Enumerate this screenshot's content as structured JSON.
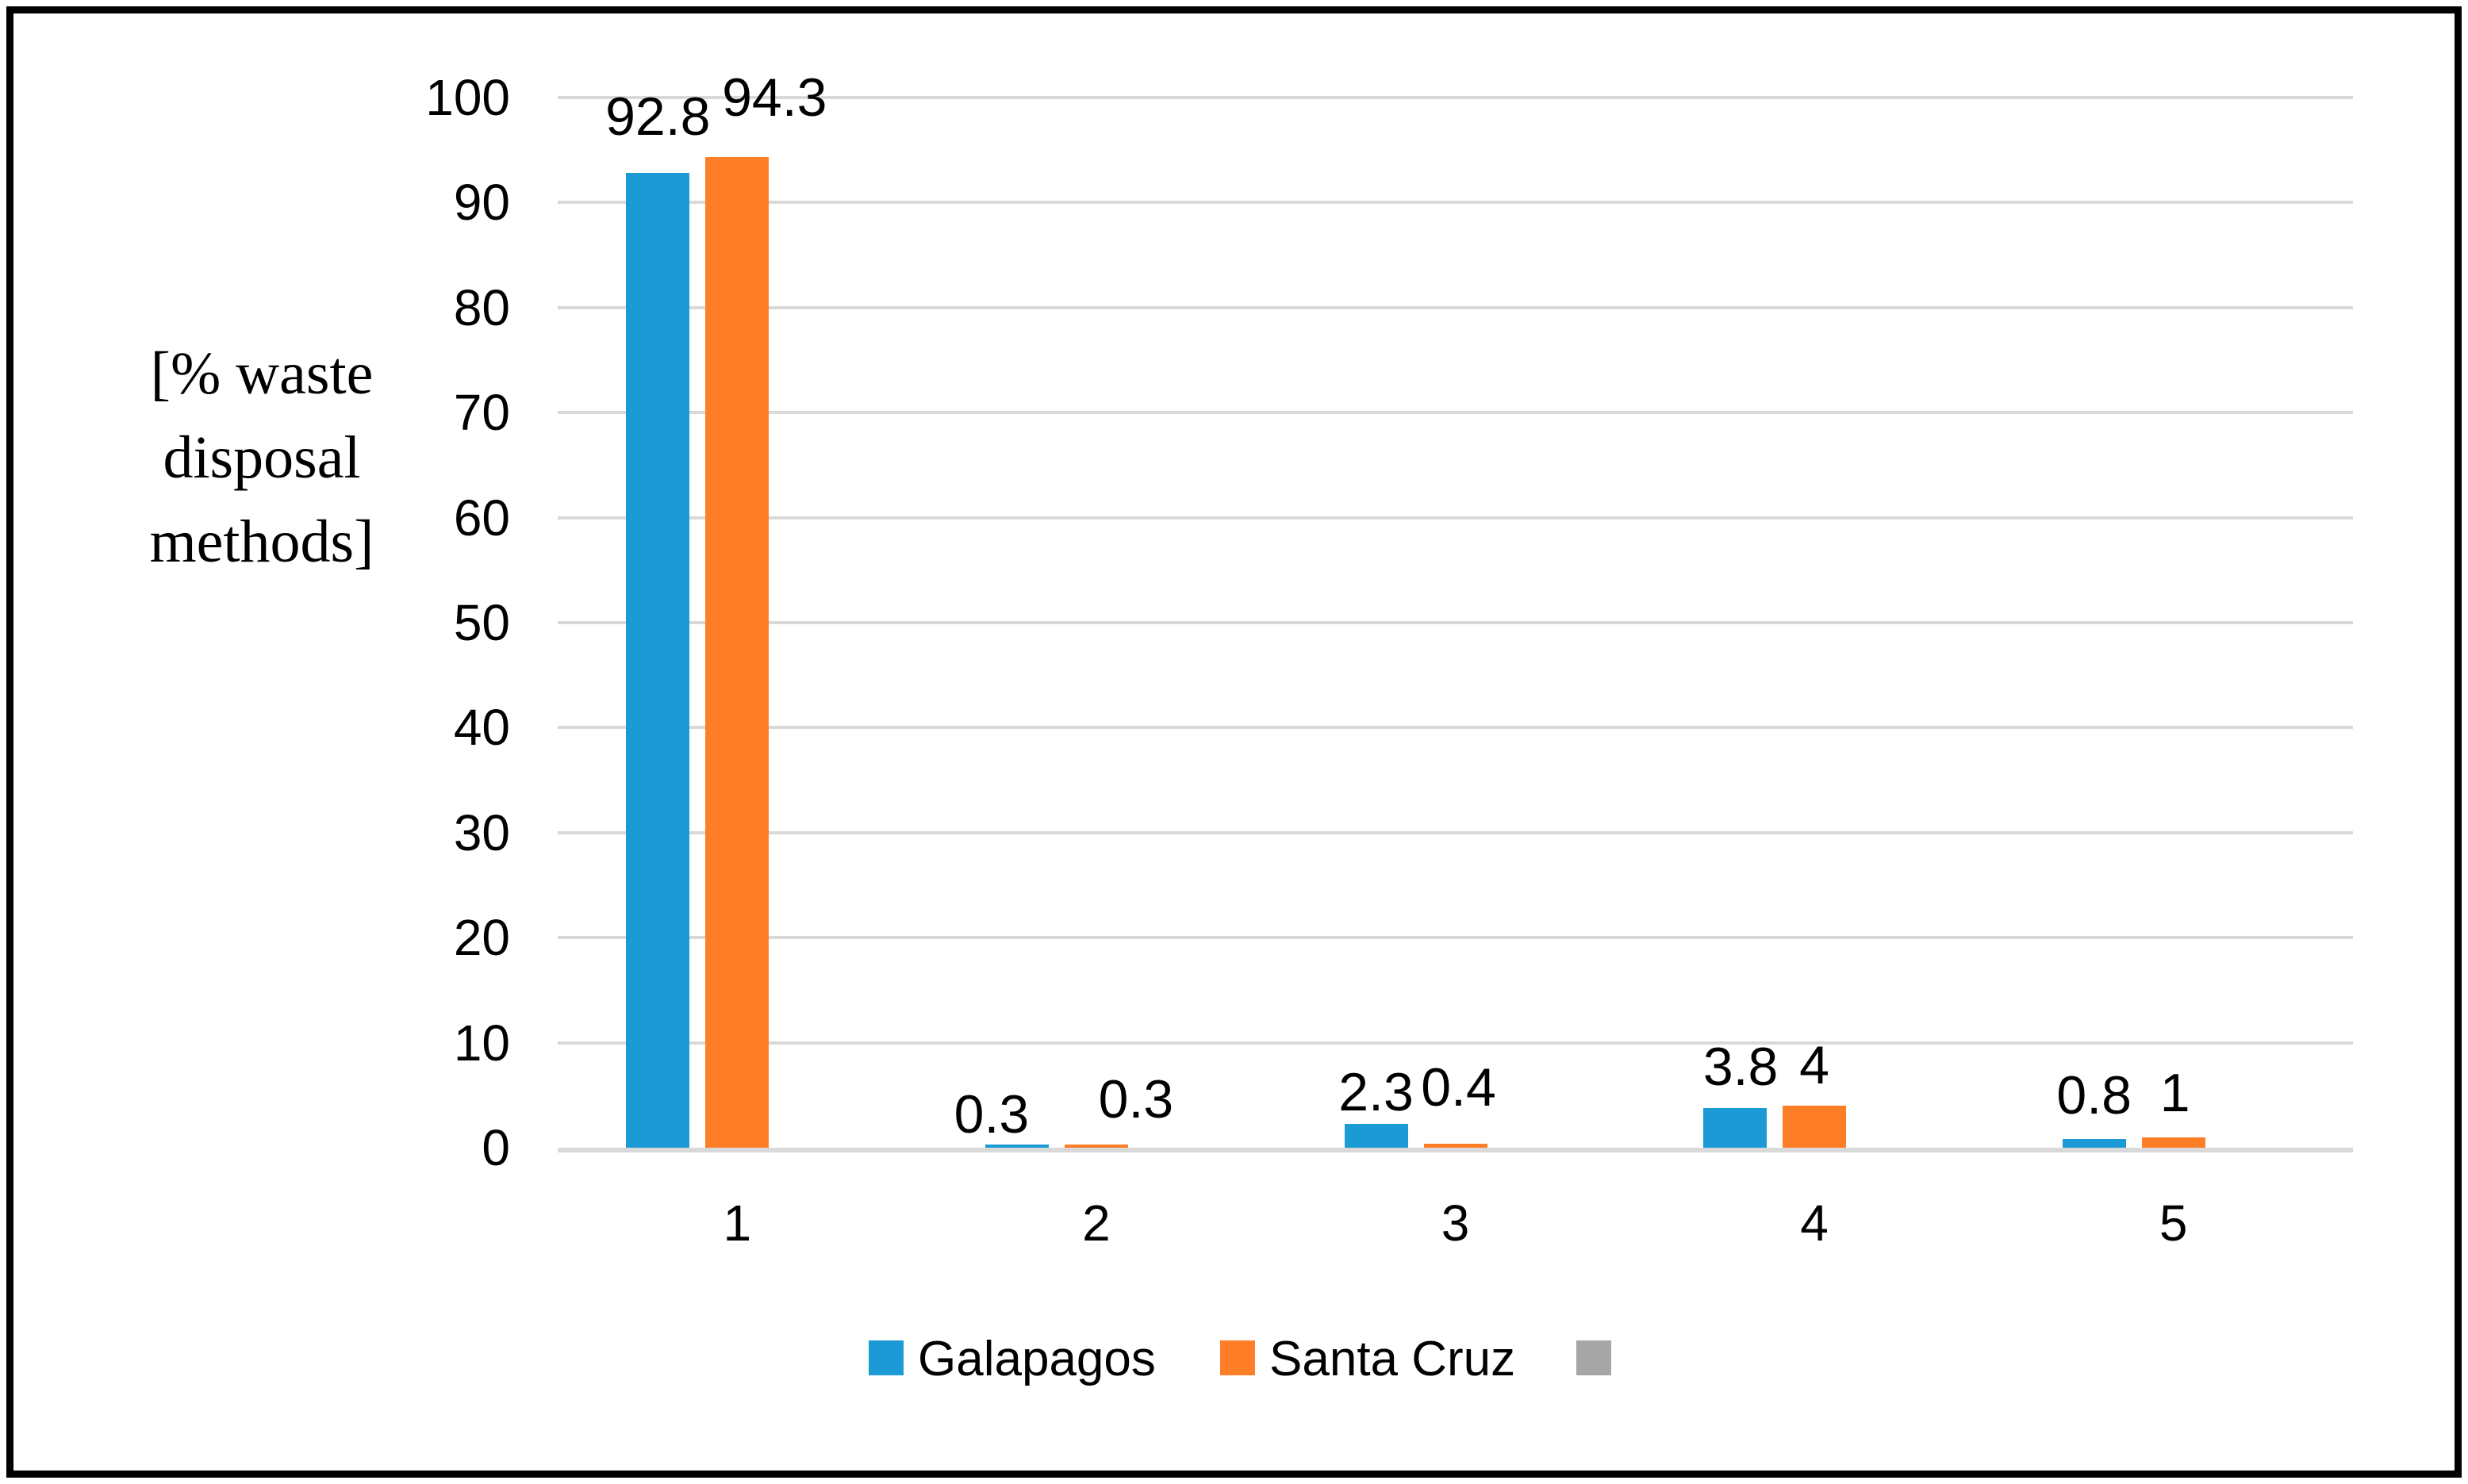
{
  "figure": {
    "background": "#FFFFFF",
    "border_color": "#000000"
  },
  "chart_data": {
    "type": "bar",
    "title": "",
    "ylabel": "[% waste disposal methods]",
    "ylabel_lines": [
      "[% waste",
      "disposal",
      "methods]"
    ],
    "xlabel": "",
    "categories": [
      "1",
      "2",
      "3",
      "4",
      "5"
    ],
    "series": [
      {
        "name": "Galapagos",
        "color": "#1C9AD6",
        "values": [
          92.8,
          0.3,
          2.3,
          3.8,
          0.8
        ],
        "data_labels": [
          "92.8",
          "0.3",
          "2.3",
          "3.8",
          "0.8"
        ],
        "label_dx": [
          0,
          -32,
          0,
          7,
          0
        ],
        "label_dy": [
          21,
          -12,
          -10,
          2,
          5
        ]
      },
      {
        "name": "Santa Cruz",
        "color": "#FD7E27",
        "values": [
          94.3,
          0.3,
          0.4,
          4,
          1
        ],
        "data_labels": [
          "94.3",
          "0.3",
          "0.4",
          "4",
          "1"
        ],
        "label_dx": [
          47,
          50,
          4,
          0,
          2
        ],
        "label_dy": [
          25,
          7,
          21,
          1,
          6
        ]
      },
      {
        "name": "",
        "color": "#A6A6A6",
        "values": [
          0,
          0,
          0,
          0,
          0
        ],
        "data_labels": [
          "",
          "",
          "",
          "",
          ""
        ],
        "label_dx": [
          0,
          0,
          0,
          0,
          0
        ],
        "label_dy": [
          0,
          0,
          0,
          0,
          0
        ]
      }
    ],
    "y_axis": {
      "min": 0,
      "max": 100,
      "step": 10,
      "tick_labels": [
        "0",
        "10",
        "20",
        "30",
        "40",
        "50",
        "60",
        "70",
        "80",
        "90",
        "100"
      ]
    },
    "x_axis": {
      "tick_labels": [
        "1",
        "2",
        "3",
        "4",
        "5"
      ]
    },
    "grid": true,
    "gridline_color": "#D9D9D9",
    "axis_line_color": "#D9D9D9",
    "legend_position": "bottom"
  },
  "legend": {
    "items": [
      {
        "label": "Galapagos",
        "color": "#1C9AD6"
      },
      {
        "label": "Santa Cruz",
        "color": "#FD7E27"
      },
      {
        "label": "",
        "color": "#A6A6A6"
      }
    ]
  }
}
